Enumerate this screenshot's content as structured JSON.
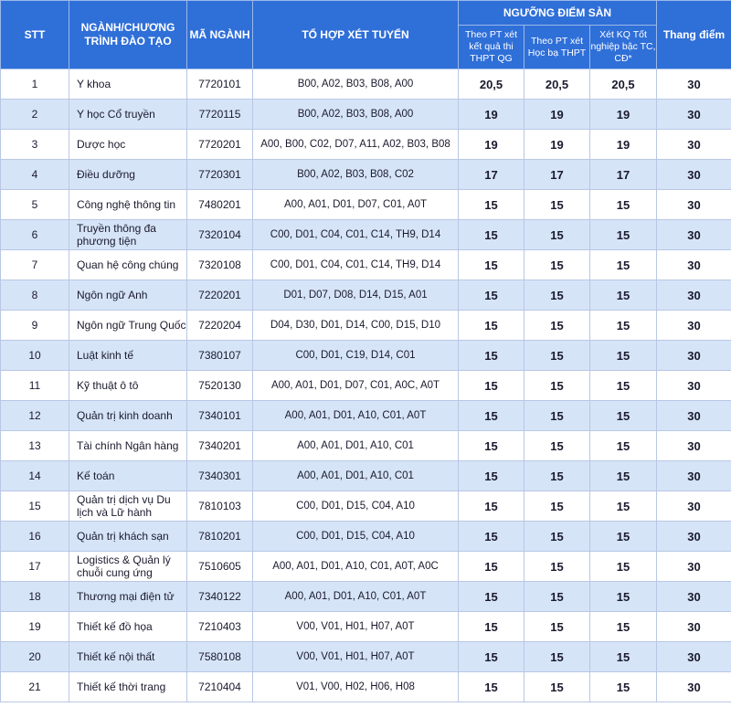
{
  "header": {
    "stt": "STT",
    "program": "NGÀNH/CHƯƠNG TRÌNH ĐÀO TẠO",
    "code": "MÃ NGÀNH",
    "combos": "TỔ HỢP XÉT TUYỂN",
    "threshold_group": "NGƯỠNG ĐIỂM SÀN",
    "method_thpt": "Theo PT xét kết quả thi THPT QG",
    "method_hocba": "Theo PT xét Học bạ THPT",
    "method_tc": "Xét KQ Tốt nghiệp bậc TC, CĐ*",
    "scale": "Thang điểm"
  },
  "rows": [
    {
      "stt": "1",
      "program": "Y khoa",
      "code": "7720101",
      "combos": "B00, A02, B03, B08, A00",
      "thpt": "20,5",
      "hocba": "20,5",
      "tc": "20,5",
      "scale": "30"
    },
    {
      "stt": "2",
      "program": "Y học Cổ truyền",
      "code": "7720115",
      "combos": "B00, A02, B03, B08, A00",
      "thpt": "19",
      "hocba": "19",
      "tc": "19",
      "scale": "30"
    },
    {
      "stt": "3",
      "program": "Dược học",
      "code": "7720201",
      "combos": "A00, B00, C02, D07, A11, A02, B03, B08",
      "thpt": "19",
      "hocba": "19",
      "tc": "19",
      "scale": "30"
    },
    {
      "stt": "4",
      "program": "Điều dưỡng",
      "code": "7720301",
      "combos": "B00, A02, B03, B08, C02",
      "thpt": "17",
      "hocba": "17",
      "tc": "17",
      "scale": "30"
    },
    {
      "stt": "5",
      "program": "Công nghệ thông tin",
      "code": "7480201",
      "combos": "A00, A01, D01, D07, C01, A0T",
      "thpt": "15",
      "hocba": "15",
      "tc": "15",
      "scale": "30"
    },
    {
      "stt": "6",
      "program": "Truyền thông đa phương tiện",
      "code": "7320104",
      "combos": "C00, D01, C04, C01, C14, TH9, D14",
      "thpt": "15",
      "hocba": "15",
      "tc": "15",
      "scale": "30"
    },
    {
      "stt": "7",
      "program": "Quan hệ công chúng",
      "code": "7320108",
      "combos": "C00, D01, C04, C01, C14, TH9, D14",
      "thpt": "15",
      "hocba": "15",
      "tc": "15",
      "scale": "30"
    },
    {
      "stt": "8",
      "program": "Ngôn ngữ Anh",
      "code": "7220201",
      "combos": "D01, D07, D08, D14, D15, A01",
      "thpt": "15",
      "hocba": "15",
      "tc": "15",
      "scale": "30"
    },
    {
      "stt": "9",
      "program": "Ngôn ngữ Trung Quốc",
      "code": "7220204",
      "combos": "D04, D30, D01, D14, C00, D15, D10",
      "thpt": "15",
      "hocba": "15",
      "tc": "15",
      "scale": "30"
    },
    {
      "stt": "10",
      "program": "Luật kinh tế",
      "code": "7380107",
      "combos": "C00, D01, C19, D14, C01",
      "thpt": "15",
      "hocba": "15",
      "tc": "15",
      "scale": "30"
    },
    {
      "stt": "11",
      "program": "Kỹ thuật ô tô",
      "code": "7520130",
      "combos": "A00, A01, D01, D07, C01, A0C, A0T",
      "thpt": "15",
      "hocba": "15",
      "tc": "15",
      "scale": "30"
    },
    {
      "stt": "12",
      "program": "Quản trị kinh doanh",
      "code": "7340101",
      "combos": "A00, A01, D01, A10, C01, A0T",
      "thpt": "15",
      "hocba": "15",
      "tc": "15",
      "scale": "30"
    },
    {
      "stt": "13",
      "program": "Tài chính Ngân hàng",
      "code": "7340201",
      "combos": "A00, A01, D01, A10, C01",
      "thpt": "15",
      "hocba": "15",
      "tc": "15",
      "scale": "30"
    },
    {
      "stt": "14",
      "program": "Kế toán",
      "code": "7340301",
      "combos": "A00, A01, D01, A10, C01",
      "thpt": "15",
      "hocba": "15",
      "tc": "15",
      "scale": "30"
    },
    {
      "stt": "15",
      "program": "Quản trị dịch vụ Du lịch và Lữ hành",
      "code": "7810103",
      "combos": "C00, D01, D15, C04, A10",
      "thpt": "15",
      "hocba": "15",
      "tc": "15",
      "scale": "30"
    },
    {
      "stt": "16",
      "program": "Quản trị khách sạn",
      "code": "7810201",
      "combos": "C00, D01, D15, C04, A10",
      "thpt": "15",
      "hocba": "15",
      "tc": "15",
      "scale": "30"
    },
    {
      "stt": "17",
      "program": "Logistics & Quản lý chuỗi cung ứng",
      "code": "7510605",
      "combos": "A00, A01, D01, A10, C01, A0T, A0C",
      "thpt": "15",
      "hocba": "15",
      "tc": "15",
      "scale": "30"
    },
    {
      "stt": "18",
      "program": "Thương mại điện tử",
      "code": "7340122",
      "combos": "A00, A01, D01, A10, C01, A0T",
      "thpt": "15",
      "hocba": "15",
      "tc": "15",
      "scale": "30"
    },
    {
      "stt": "19",
      "program": "Thiết kế đồ họa",
      "code": "7210403",
      "combos": "V00, V01, H01, H07, A0T",
      "thpt": "15",
      "hocba": "15",
      "tc": "15",
      "scale": "30"
    },
    {
      "stt": "20",
      "program": "Thiết kế nội thất",
      "code": "7580108",
      "combos": "V00, V01, H01, H07, A0T",
      "thpt": "15",
      "hocba": "15",
      "tc": "15",
      "scale": "30"
    },
    {
      "stt": "21",
      "program": "Thiết kế thời trang",
      "code": "7210404",
      "combos": "V01, V00, H02, H06, H08",
      "thpt": "15",
      "hocba": "15",
      "tc": "15",
      "scale": "30"
    }
  ]
}
